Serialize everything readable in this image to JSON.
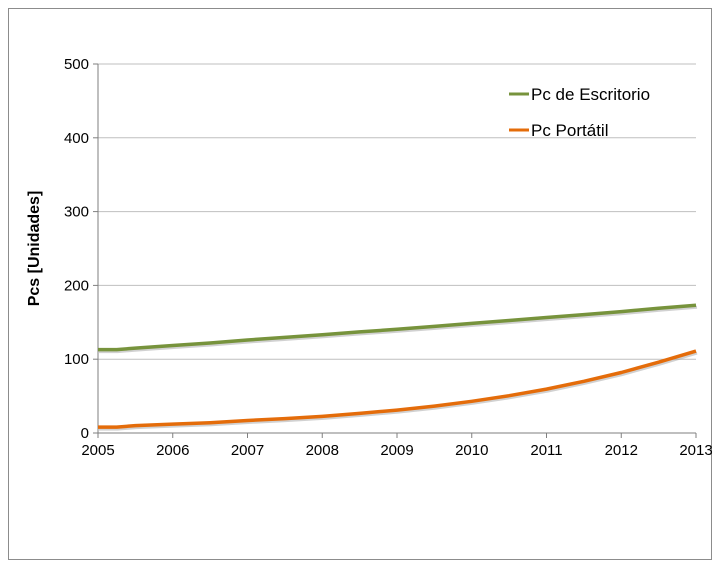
{
  "chart_data": {
    "type": "line",
    "title": "",
    "xlabel": "",
    "ylabel": "Pcs [Unidades]",
    "xlim": [
      2005,
      2013
    ],
    "ylim": [
      0,
      500
    ],
    "x_ticks": [
      "2005",
      "2006",
      "2007",
      "2008",
      "2009",
      "2010",
      "2011",
      "2012",
      "2013"
    ],
    "y_ticks": [
      "0",
      "100",
      "200",
      "300",
      "400",
      "500"
    ],
    "grid": "horizontal",
    "legend_position": "top-right",
    "x": [
      2005,
      2005.25,
      2005.5,
      2006,
      2006.5,
      2007,
      2007.5,
      2008,
      2008.5,
      2009,
      2009.5,
      2010,
      2010.5,
      2011,
      2011.5,
      2012,
      2012.5,
      2013
    ],
    "series": [
      {
        "name": "Pc de Escritorio",
        "color": "#77933c",
        "values": [
          113,
          113,
          115,
          118.5,
          122,
          126,
          129.5,
          133,
          137,
          140.5,
          144.5,
          148.5,
          152.5,
          156.5,
          160.5,
          164.5,
          169,
          173
        ]
      },
      {
        "name": "Pc Portátil",
        "color": "#e46c0a",
        "values": [
          8,
          8,
          10,
          12,
          14,
          17,
          19.5,
          22.5,
          26.5,
          31,
          36.5,
          43,
          50.5,
          59.5,
          70,
          82,
          96,
          111
        ]
      }
    ]
  }
}
